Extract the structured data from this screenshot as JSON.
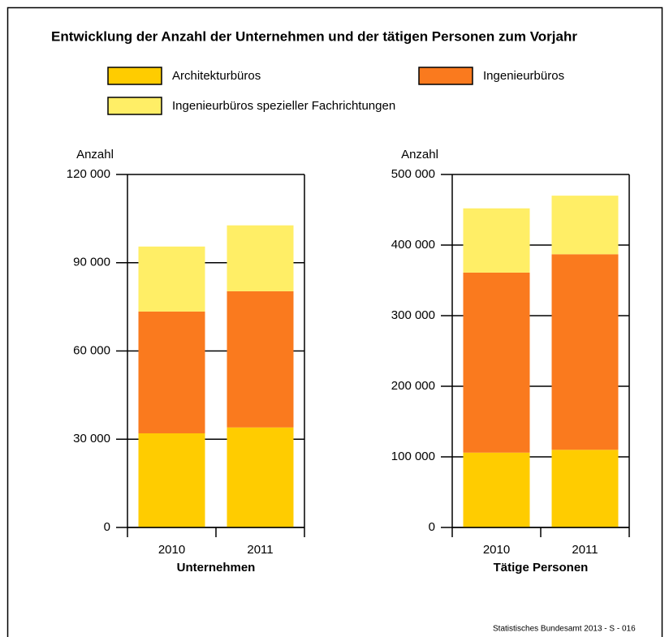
{
  "title": "Entwicklung der Anzahl der Unternehmen und der tätigen Personen zum Vorjahr",
  "source": "Statistisches Bundesamt 2013 - S - 016",
  "chart_data": [
    {
      "type": "bar",
      "stacked": true,
      "ylabel": "Anzahl",
      "xlabel": "Unternehmen",
      "categories": [
        "2010",
        "2011"
      ],
      "series": [
        {
          "name": "Architekturbüros",
          "color": "#ffcc00",
          "values": [
            32000,
            34000
          ]
        },
        {
          "name": "Ingenieurbüros",
          "color": "#fa7a1e",
          "values": [
            41400,
            46300
          ]
        },
        {
          "name": "Ingenieurbüros spezieller Fachrichtungen",
          "color": "#ffee66",
          "values": [
            22100,
            22400
          ]
        }
      ],
      "ylim": [
        0,
        120000
      ],
      "yticks": [
        0,
        {
          "value": 30000,
          "label": "30 000"
        },
        {
          "value": 60000,
          "label": "60 000"
        },
        {
          "value": 90000,
          "label": "90 000"
        },
        {
          "value": 120000,
          "label": "120 000"
        }
      ],
      "grid": true
    },
    {
      "type": "bar",
      "stacked": true,
      "ylabel": "Anzahl",
      "xlabel": "Tätige Personen",
      "categories": [
        "2010",
        "2011"
      ],
      "series": [
        {
          "name": "Architekturbüros",
          "color": "#ffcc00",
          "values": [
            106000,
            110000
          ]
        },
        {
          "name": "Ingenieurbüros",
          "color": "#fa7a1e",
          "values": [
            255000,
            277000
          ]
        },
        {
          "name": "Ingenieurbüros spezieller Fachrichtungen",
          "color": "#ffee66",
          "values": [
            91000,
            83000
          ]
        }
      ],
      "ylim": [
        0,
        500000
      ],
      "yticks": [
        0,
        {
          "value": 100000,
          "label": "100 000"
        },
        {
          "value": 200000,
          "label": "200 000"
        },
        {
          "value": 300000,
          "label": "300 000"
        },
        {
          "value": 400000,
          "label": "400 000"
        },
        {
          "value": 500000,
          "label": "500 000"
        }
      ],
      "grid": true
    }
  ]
}
